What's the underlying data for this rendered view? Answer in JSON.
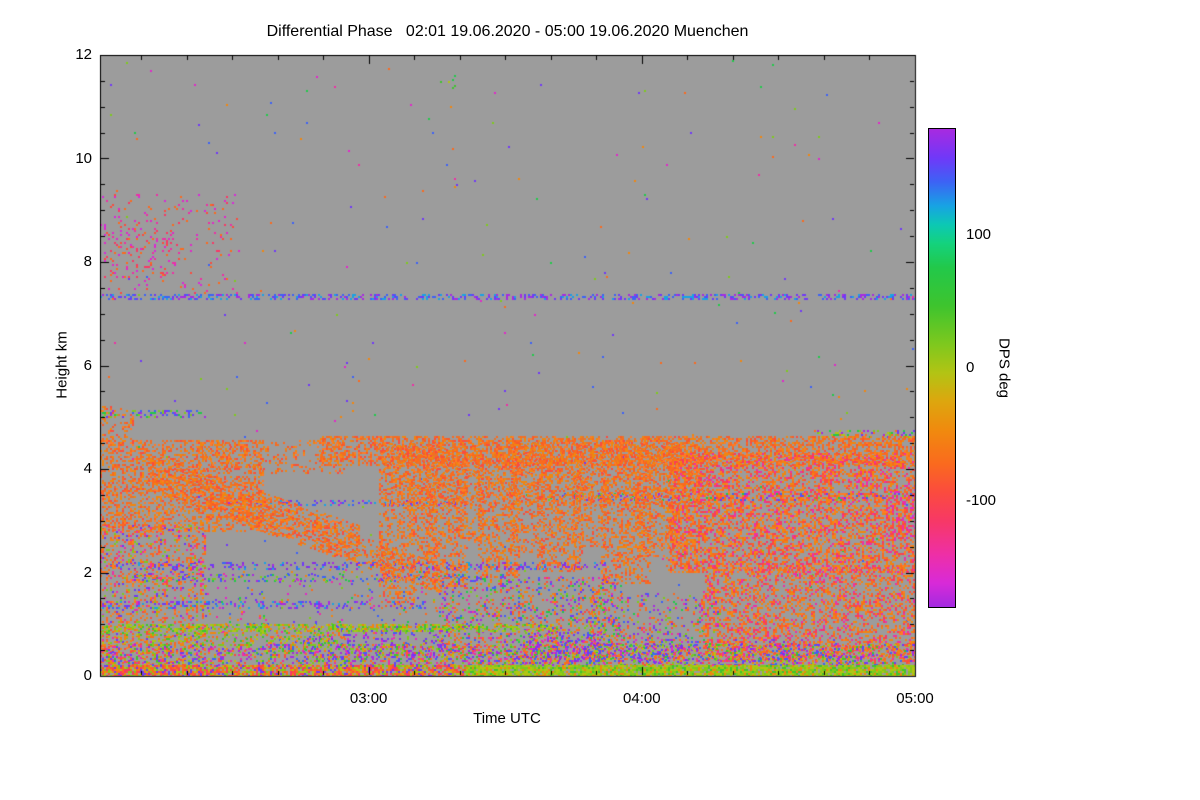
{
  "title": "Differential Phase   02:01 19.06.2020 - 05:00 19.06.2020 Muenchen",
  "chart_data": {
    "type": "heatmap",
    "title": "Differential Phase   02:01 19.06.2020 - 05:00 19.06.2020 Muenchen",
    "site": "Muenchen",
    "time_start": "02:01 19.06.2020",
    "time_end": "05:00 19.06.2020",
    "xlabel": "Time UTC",
    "ylabel": "Height km",
    "summary": "Time-height display of radar differential phase; gray = no signal. Precipitation echoes below ~4.6 km dominated by values near -100 deg (orange/red) with fall-streak plumes, a multicolored noisy layer below 1 km, a blue/purple interference line at ~7.3 km, and scattered magenta echoes at 7.5-9.3 km before ~02:30.",
    "x_axis": {
      "start_label": "02:01",
      "span_minutes": 179,
      "first_minor_minute": 9,
      "minor_step_minutes": 10,
      "major_ticks": [
        {
          "label": "03:00",
          "minute": 59
        },
        {
          "label": "04:00",
          "minute": 119
        },
        {
          "label": "05:00",
          "minute": 179
        }
      ]
    },
    "y_axis": {
      "min": 0,
      "max": 12,
      "major_step": 2,
      "minor_step": 0.5,
      "tick_labels": [
        "0",
        "2",
        "4",
        "6",
        "8",
        "10",
        "12"
      ]
    },
    "colorbar": {
      "label": "DPS deg",
      "min": -180,
      "max": 180,
      "ticks": [
        {
          "label": "100",
          "value": 100
        },
        {
          "label": "0",
          "value": 0
        },
        {
          "label": "-100",
          "value": -100
        }
      ],
      "gradient_stops": [
        "#a82ae0 0%",
        "#7038f8 6%",
        "#3d62f5 11%",
        "#18a2e4 16%",
        "#0cc8b4 20%",
        "#14d27c 24%",
        "#22c84a 29%",
        "#3ec42e 37%",
        "#7ec81e 45%",
        "#b2c414 51%",
        "#dda60e 57%",
        "#f08a0e 63%",
        "#fa6a1e 70%",
        "#fb4b3e 76%",
        "#f73866 82%",
        "#ee2fa6 89%",
        "#d82ad8 95%",
        "#a32ae0 100%"
      ]
    },
    "colors": {
      "plot_bg": "#9c9c9c",
      "frame": "#000000",
      "text": "#000000",
      "page_bg": "#ffffff"
    },
    "palettes": {
      "orange": [
        "#fa6a1e",
        "#f0860f",
        "#fb4b3e",
        "#ff7b28",
        "#f85a2a",
        "#e8742a",
        "#fa6a1e",
        "#f0860f"
      ],
      "orangeRed": [
        "#fa6a1e",
        "#f0860f",
        "#fb4b3e",
        "#ff7b28",
        "#f73866",
        "#fa6a1e",
        "#f0860f",
        "#ee2fa6"
      ],
      "magentaRed": [
        "#ee2fa6",
        "#d82ad8",
        "#fb4b3e",
        "#f73866",
        "#e028c8",
        "#fa6a1e"
      ],
      "purpleBlue": [
        "#7038f8",
        "#3d62f5",
        "#a82ae0",
        "#8a2be2",
        "#18a2e4"
      ],
      "lineBlue": [
        "#3d62f5",
        "#7038f8",
        "#a82ae0",
        "#18a2e4"
      ],
      "purpleGreen": [
        "#7038f8",
        "#a82ae0",
        "#7ec81e",
        "#3d62f5",
        "#22c84a"
      ],
      "greenYellow": [
        "#7ec81e",
        "#b2c414",
        "#3ec42e",
        "#22c84a",
        "#9acc10"
      ],
      "greenOrange": [
        "#7ec81e",
        "#b2c414",
        "#fa6a1e",
        "#f0860f",
        "#3ec42e"
      ],
      "streakMix": [
        "#7ec81e",
        "#7038f8",
        "#fa6a1e",
        "#22c84a",
        "#a82ae0",
        "#b2c414"
      ],
      "noiseAll": [
        "#fa6a1e",
        "#ee2fa6",
        "#7ec81e",
        "#7038f8",
        "#f0860f",
        "#e028c8",
        "#3d62f5",
        "#22c84a"
      ],
      "leftLow": [
        "#fa6a1e",
        "#f0860f",
        "#fb4b3e",
        "#ff7b28",
        "#7038f8",
        "#7ec81e",
        "#ee2fa6",
        "#fa6a1e"
      ],
      "lowMix": [
        "#fa6a1e",
        "#f0860f",
        "#7038f8",
        "#7ec81e",
        "#3d62f5",
        "#fb4b3e",
        "#a82ae0",
        "#ee2fa6",
        "#22c84a",
        "#fa6a1e"
      ],
      "purpleMix": [
        "#7038f8",
        "#a82ae0",
        "#3d62f5",
        "#8a2be2",
        "#7ec81e",
        "#fa6a1e",
        "#e028c8"
      ],
      "greenLine": [
        "#7ec81e",
        "#b2c414",
        "#9acc10",
        "#3ec42e",
        "#f0860f"
      ],
      "greenBright": [
        "#7ec81e",
        "#b2c414",
        "#9acc10",
        "#3ec42e",
        "#b2c414",
        "#7ec81e",
        "#f0860f"
      ],
      "bottomMix": [
        "#fa6a1e",
        "#7ec81e",
        "#7038f8",
        "#f0860f",
        "#3ec42e",
        "#a82ae0",
        "#ee2fa6",
        "#3d62f5",
        "#b2c414",
        "#fb4b3e"
      ],
      "bottomLeft": [
        "#fa6a1e",
        "#fb4b3e",
        "#7ec81e",
        "#f0860f",
        "#f73866",
        "#b2c414",
        "#7038f8"
      ]
    },
    "echo_regions": [
      {
        "name": "background-noise",
        "t": [
          0,
          1
        ],
        "h": [
          0.5,
          11.9
        ],
        "d": 0.0025,
        "p": "noiseAll"
      },
      {
        "name": "upper-left-scatter",
        "t": [
          0,
          0.17
        ],
        "h": [
          7.4,
          9.3
        ],
        "d": 0.045,
        "p": "magentaRed"
      },
      {
        "name": "upper-left-core",
        "t": [
          0.005,
          0.09
        ],
        "h": [
          7.7,
          8.8
        ],
        "d": 0.09,
        "p": "magentaRed"
      },
      {
        "name": "interference-line-7km",
        "t": [
          0,
          1
        ],
        "h": [
          7.28,
          7.38
        ],
        "d": 0.4,
        "p": "lineBlue"
      },
      {
        "name": "streak-5km",
        "t": [
          0,
          0.13
        ],
        "h": [
          5.0,
          5.14
        ],
        "d": 0.3,
        "p": "purpleGreen"
      },
      {
        "name": "left-peak",
        "t": [
          0,
          0.04
        ],
        "h": [
          4.5,
          5.2
        ],
        "d": 0.25,
        "p": "orange"
      },
      {
        "name": "streak-4.7km-right",
        "t": [
          0.88,
          1
        ],
        "h": [
          4.6,
          4.74
        ],
        "d": 0.35,
        "p": "streakMix"
      },
      {
        "name": "streak-3.5km",
        "t": [
          0.55,
          1
        ],
        "h": [
          3.4,
          3.52
        ],
        "d": 0.3,
        "p": "purpleGreen"
      },
      {
        "name": "streak-3.35km",
        "t": [
          0.15,
          0.45
        ],
        "h": [
          3.3,
          3.4
        ],
        "d": 0.2,
        "p": "purpleBlue"
      },
      {
        "name": "streak-2.1km",
        "t": [
          0,
          0.62
        ],
        "h": [
          2.06,
          2.2
        ],
        "d": 0.26,
        "p": "purpleBlue"
      },
      {
        "name": "streak-1.9km",
        "t": [
          0.04,
          0.5
        ],
        "h": [
          1.84,
          1.96
        ],
        "d": 0.24,
        "p": "purpleGreen"
      },
      {
        "name": "streak-1.35km",
        "t": [
          0,
          0.4
        ],
        "h": [
          1.3,
          1.44
        ],
        "d": 0.26,
        "p": "lineBlue"
      },
      {
        "name": "echo-top-band",
        "t": [
          0.27,
          1
        ],
        "h": [
          4.05,
          4.62
        ],
        "d": 0.5,
        "p": "orange"
      },
      {
        "name": "echo-top-band-left",
        "t": [
          0.12,
          0.3
        ],
        "h": [
          3.9,
          4.55
        ],
        "d": 0.2,
        "p": "orange"
      },
      {
        "name": "left-mass",
        "t": [
          0,
          0.2
        ],
        "h": [
          2.8,
          4.55
        ],
        "d": 0.4,
        "p": "orange"
      },
      {
        "name": "left-low",
        "t": [
          0,
          0.13
        ],
        "h": [
          0.2,
          2.9
        ],
        "d": 0.28,
        "p": "leftLow"
      },
      {
        "name": "fallstreak-1",
        "type": "diag",
        "t": [
          0.06,
          0.32
        ],
        "hTop": [
          4.3,
          2.9
        ],
        "thick": 0.7,
        "d": 0.38,
        "p": "orange"
      },
      {
        "name": "fallstreak-2",
        "type": "diag",
        "t": [
          0.17,
          0.42
        ],
        "hTop": [
          3.5,
          2.15
        ],
        "thick": 0.55,
        "d": 0.33,
        "p": "orange"
      },
      {
        "name": "mid-sparse",
        "t": [
          0.13,
          0.42
        ],
        "h": [
          0.4,
          2.05
        ],
        "d": 0.05,
        "p": "noiseAll"
      },
      {
        "name": "plume-1",
        "t": [
          0.343,
          0.387
        ],
        "h": [
          1.3,
          4.5
        ],
        "d": 0.35,
        "p": "orange"
      },
      {
        "name": "plume-2",
        "t": [
          0.377,
          0.413
        ],
        "h": [
          2.2,
          4.5
        ],
        "d": 0.32,
        "p": "orange"
      },
      {
        "name": "plume-3",
        "t": [
          0.4,
          0.45
        ],
        "h": [
          1.7,
          4.5
        ],
        "d": 0.36,
        "p": "orange"
      },
      {
        "name": "plume-4",
        "t": [
          0.44,
          0.47
        ],
        "h": [
          2.6,
          4.5
        ],
        "d": 0.3,
        "p": "orange"
      },
      {
        "name": "plume-5",
        "t": [
          0.465,
          0.515
        ],
        "h": [
          1.9,
          4.55
        ],
        "d": 0.36,
        "p": "orange"
      },
      {
        "name": "plume-6",
        "t": [
          0.505,
          0.545
        ],
        "h": [
          2.4,
          4.5
        ],
        "d": 0.32,
        "p": "orange"
      },
      {
        "name": "plume-7",
        "t": [
          0.537,
          0.593
        ],
        "h": [
          2.0,
          4.55
        ],
        "d": 0.36,
        "p": "orange"
      },
      {
        "name": "plume-8",
        "t": [
          0.58,
          0.62
        ],
        "h": [
          2.5,
          4.5
        ],
        "d": 0.3,
        "p": "orange"
      },
      {
        "name": "plume-9",
        "t": [
          0.615,
          0.675
        ],
        "h": [
          1.8,
          4.55
        ],
        "d": 0.38,
        "p": "orange"
      },
      {
        "name": "plume-10",
        "t": [
          0.66,
          0.71
        ],
        "h": [
          2.3,
          4.5
        ],
        "d": 0.34,
        "p": "orange"
      },
      {
        "name": "plume-11",
        "t": [
          0.695,
          0.735
        ],
        "h": [
          2.0,
          4.5
        ],
        "d": 0.32,
        "p": "orange"
      },
      {
        "name": "plume-fill",
        "t": [
          0.35,
          0.75
        ],
        "h": [
          3.3,
          4.25
        ],
        "d": 0.22,
        "p": "orange"
      },
      {
        "name": "right-mass",
        "t": [
          0.7,
          1
        ],
        "h": [
          2.0,
          4.3
        ],
        "d": 0.48,
        "p": "orangeRed"
      },
      {
        "name": "right-low",
        "t": [
          0.74,
          1
        ],
        "h": [
          0.3,
          2.1
        ],
        "d": 0.4,
        "p": "orangeRed"
      },
      {
        "name": "right-low-purple",
        "t": [
          0.78,
          0.92
        ],
        "h": [
          0.2,
          0.7
        ],
        "d": 0.15,
        "p": "purpleMix"
      },
      {
        "name": "mid-low-patch",
        "t": [
          0.42,
          0.64
        ],
        "h": [
          0.35,
          1.9
        ],
        "d": 0.26,
        "p": "lowMix"
      },
      {
        "name": "low-mid-right",
        "t": [
          0.6,
          0.76
        ],
        "h": [
          0.3,
          1.6
        ],
        "d": 0.18,
        "p": "lowMix"
      },
      {
        "name": "low-purple-1",
        "t": [
          0.25,
          0.42
        ],
        "h": [
          0.3,
          0.95
        ],
        "d": 0.22,
        "p": "purpleMix"
      },
      {
        "name": "green-line-09km",
        "t": [
          0,
          0.56
        ],
        "h": [
          0.85,
          1.0
        ],
        "d": 0.5,
        "p": "greenLine"
      },
      {
        "name": "green-patch-07km",
        "t": [
          0,
          0.3
        ],
        "h": [
          0.6,
          0.85
        ],
        "d": 0.25,
        "p": "greenOrange"
      },
      {
        "name": "bottom-band",
        "t": [
          0,
          1
        ],
        "h": [
          0.18,
          0.6
        ],
        "d": 0.4,
        "p": "bottomMix"
      },
      {
        "name": "bottom-line-left",
        "t": [
          0,
          0.45
        ],
        "h": [
          0,
          0.2
        ],
        "d": 0.85,
        "p": "bottomLeft"
      },
      {
        "name": "bottom-line-right",
        "t": [
          0.45,
          1
        ],
        "h": [
          0,
          0.2
        ],
        "d": 0.9,
        "p": "greenBright"
      },
      {
        "name": "low-purple-2",
        "t": [
          0.52,
          0.62
        ],
        "h": [
          0.25,
          0.85
        ],
        "d": 0.3,
        "p": "purpleMix"
      },
      {
        "name": "low-purple-3",
        "t": [
          0.655,
          0.72
        ],
        "h": [
          0.28,
          0.75
        ],
        "d": 0.28,
        "p": "purpleMix"
      },
      {
        "name": "right-edge-magenta",
        "t": [
          0.965,
          1
        ],
        "h": [
          2.6,
          3.6
        ],
        "d": 0.22,
        "p": "magentaRed"
      },
      {
        "name": "cirrus-dots",
        "t": [
          0.41,
          0.435
        ],
        "h": [
          11.35,
          11.6
        ],
        "d": 0.12,
        "p": "greenYellow"
      }
    ]
  }
}
